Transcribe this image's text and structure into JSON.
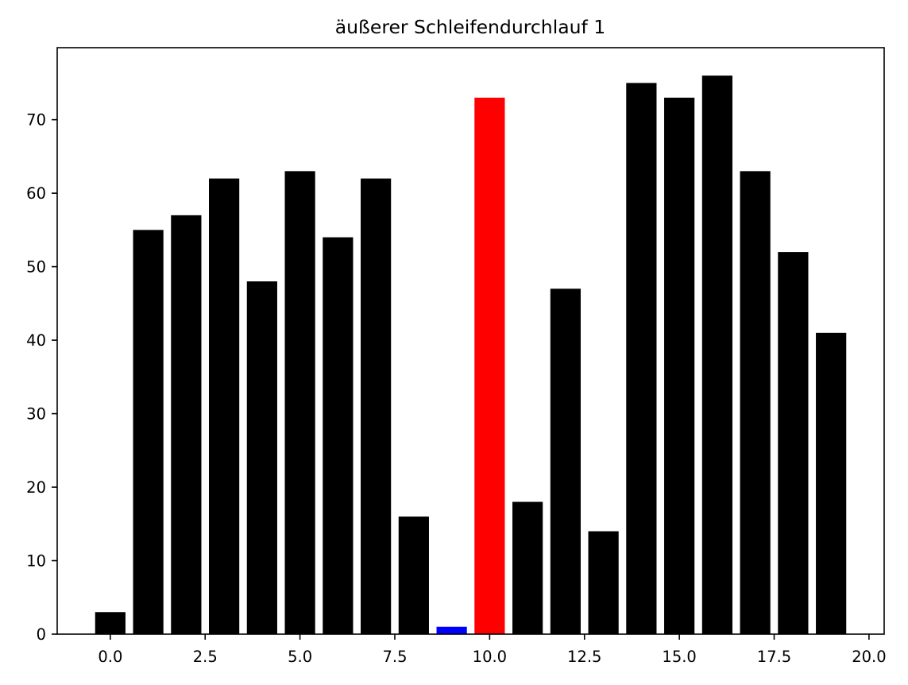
{
  "chart_data": {
    "type": "bar",
    "title": "äußerer Schleifendurchlauf 1",
    "xlabel": "",
    "ylabel": "",
    "x": [
      0,
      1,
      2,
      3,
      4,
      5,
      6,
      7,
      8,
      9,
      10,
      11,
      12,
      13,
      14,
      15,
      16,
      17,
      18,
      19
    ],
    "values": [
      3,
      55,
      57,
      62,
      48,
      63,
      54,
      62,
      16,
      1,
      73,
      18,
      47,
      14,
      75,
      73,
      76,
      63,
      52,
      41
    ],
    "bar_colors": [
      "#000000",
      "#000000",
      "#000000",
      "#000000",
      "#000000",
      "#000000",
      "#000000",
      "#000000",
      "#000000",
      "#0000ff",
      "#ff0000",
      "#000000",
      "#000000",
      "#000000",
      "#000000",
      "#000000",
      "#000000",
      "#000000",
      "#000000",
      "#000000"
    ],
    "bar_width": 0.8,
    "xlim": [
      -1.4,
      20.4
    ],
    "ylim": [
      0,
      79.8
    ],
    "xticks": [
      0,
      2.5,
      5,
      7.5,
      10,
      12.5,
      15,
      17.5,
      20
    ],
    "xtick_labels": [
      "0.0",
      "2.5",
      "5.0",
      "7.5",
      "10.0",
      "12.5",
      "15.0",
      "17.5",
      "20.0"
    ],
    "yticks": [
      0,
      10,
      20,
      30,
      40,
      50,
      60,
      70
    ],
    "ytick_labels": [
      "0",
      "10",
      "20",
      "30",
      "40",
      "50",
      "60",
      "70"
    ],
    "grid": false,
    "legend": "none"
  }
}
